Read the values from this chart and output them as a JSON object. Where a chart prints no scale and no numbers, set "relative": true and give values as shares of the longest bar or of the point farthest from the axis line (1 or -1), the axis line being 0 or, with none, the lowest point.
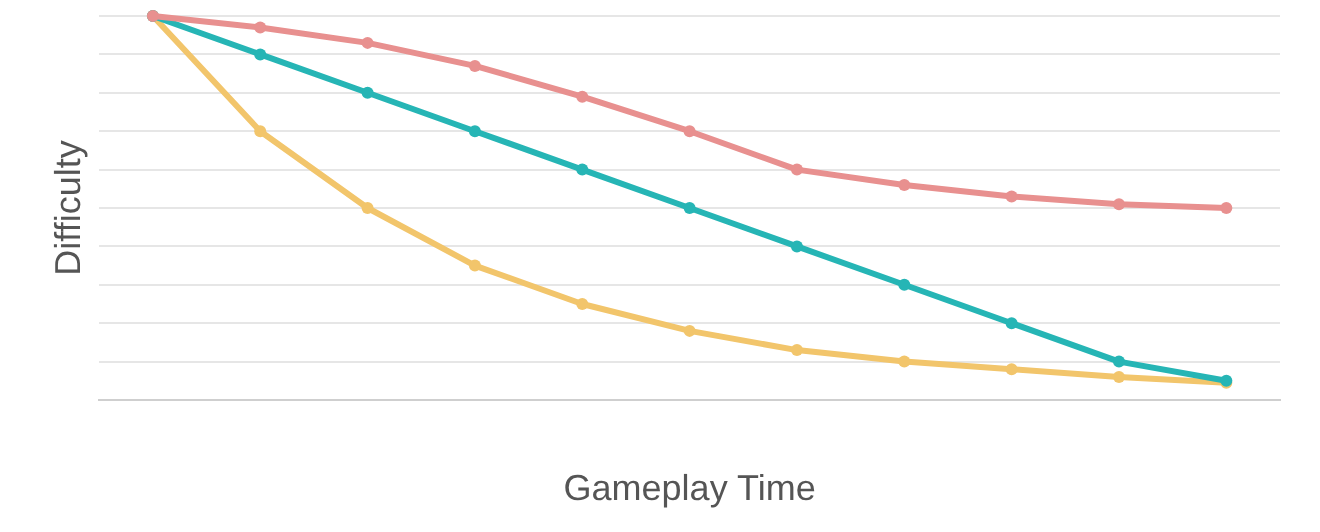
{
  "chart_data": {
    "type": "line",
    "relative": true,
    "xlabel": "Gameplay Time",
    "ylabel": "Difficulty",
    "categories": [
      null,
      null,
      null,
      null,
      null,
      null,
      null,
      null,
      null,
      null,
      null
    ],
    "series": [
      {
        "color": "#e8908f",
        "values": [
          1,
          0.97,
          0.93,
          0.87,
          0.79,
          0.7,
          0.6,
          0.56,
          0.53,
          0.51,
          0.5
        ]
      },
      {
        "color": "#26b5b5",
        "values": [
          1,
          0.9,
          0.8,
          0.7,
          0.6,
          0.5,
          0.4,
          0.3,
          0.2,
          0.1,
          0.05
        ]
      },
      {
        "color": "#f2c56b",
        "values": [
          1,
          0.7,
          0.5,
          0.35,
          0.25,
          0.18,
          0.13,
          0.1,
          0.08,
          0.06,
          0.045
        ]
      }
    ],
    "grid": "y",
    "marker": "circle",
    "line_style": "solid",
    "legend": false
  }
}
